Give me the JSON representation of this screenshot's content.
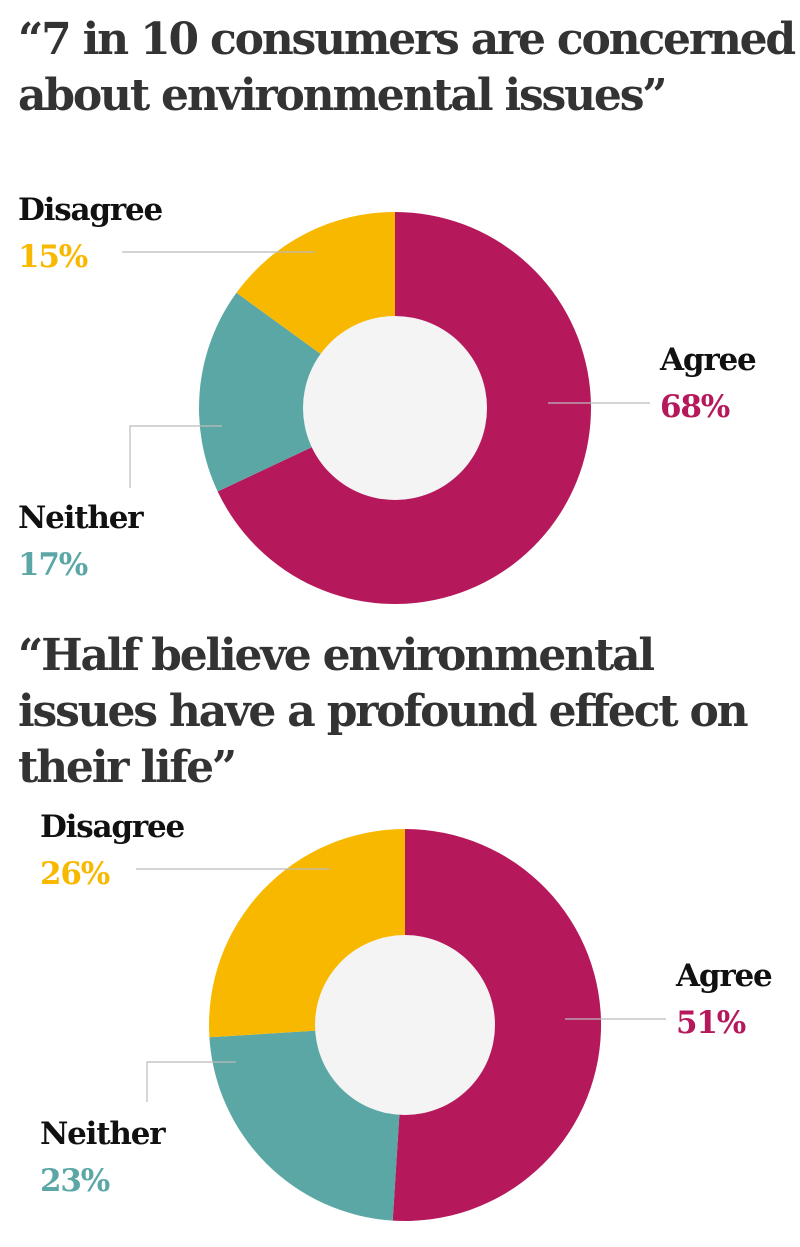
{
  "colors": {
    "agree": "#b5195b",
    "disagree": "#f9b800",
    "neither": "#5ba7a5",
    "hole": "#f4f4f4",
    "title": "#333333"
  },
  "chart_data": [
    {
      "type": "pie",
      "title": "“7 in 10 consumers are concerned about environmental issues”",
      "slices": [
        {
          "label": "Agree",
          "value": 68,
          "value_label": "68%",
          "color": "#b5195b"
        },
        {
          "label": "Neither",
          "value": 17,
          "value_label": "17%",
          "color": "#5ba7a5"
        },
        {
          "label": "Disagree",
          "value": 15,
          "value_label": "15%",
          "color": "#f9b800"
        }
      ]
    },
    {
      "type": "pie",
      "title": "“Half believe environmental issues have a profound effect on their life”",
      "slices": [
        {
          "label": "Agree",
          "value": 51,
          "value_label": "51%",
          "color": "#b5195b"
        },
        {
          "label": "Neither",
          "value": 23,
          "value_label": "23%",
          "color": "#5ba7a5"
        },
        {
          "label": "Disagree",
          "value": 26,
          "value_label": "26%",
          "color": "#f9b800"
        }
      ]
    }
  ]
}
